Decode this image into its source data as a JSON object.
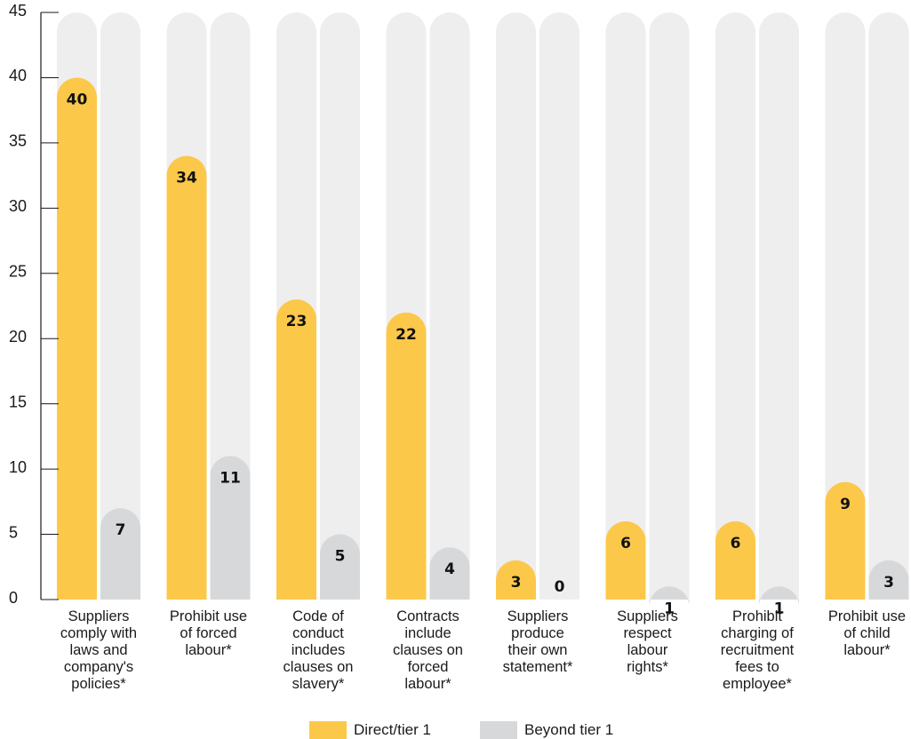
{
  "chart_data": {
    "type": "bar",
    "categories": [
      "Suppliers\ncomply with\nlaws and\ncompany's\npolicies*",
      "Prohibit use\nof forced\nlabour*",
      "Code of\nconduct\nincludes\nclauses on\nslavery*",
      "Contracts\ninclude\nclauses on\nforced\nlabour*",
      "Suppliers\nproduce\ntheir own\nstatement*",
      "Suppliers\nrespect\nlabour\nrights*",
      "Prohibit\ncharging of\nrecruitment\nfees to\nemployee*",
      "Prohibit use\nof child\nlabour*"
    ],
    "series": [
      {
        "name": "Direct/tier 1",
        "values": [
          40,
          34,
          23,
          22,
          3,
          6,
          6,
          9
        ],
        "color": "#fcc84a"
      },
      {
        "name": "Beyond tier 1",
        "values": [
          7,
          11,
          5,
          4,
          0,
          1,
          1,
          3
        ],
        "color": "#d7d8da"
      }
    ],
    "ylim": [
      0,
      45
    ],
    "yticks": [
      "0",
      "5",
      "10",
      "15",
      "20",
      "25",
      "30",
      "35",
      "40",
      "45"
    ],
    "background_bar_color": "#eeeeef",
    "grid": false,
    "legend_position": "bottom-center",
    "title": "",
    "xlabel": "",
    "ylabel": ""
  }
}
